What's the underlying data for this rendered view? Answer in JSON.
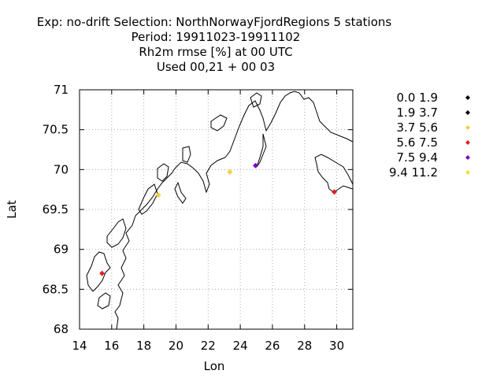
{
  "chart_data": {
    "type": "scatter",
    "title_lines": [
      "Exp: no-drift   Selection: NorthNorwayFjordRegions       5 stations",
      "Period: 19911023-19911102",
      "Rh2m rmse [%] at  00 UTC",
      "Used  00,21  + 00 03"
    ],
    "xlabel": "Lon",
    "ylabel": "Lat",
    "xlim": [
      14,
      31
    ],
    "ylim": [
      68,
      71
    ],
    "xticks": [
      14,
      16,
      18,
      20,
      22,
      24,
      26,
      28,
      30
    ],
    "yticks": [
      68,
      68.5,
      69,
      69.5,
      70,
      70.5,
      71
    ],
    "xtick_labels": [
      "14",
      "16",
      "18",
      "20",
      "22",
      "24",
      "26",
      "28",
      "30"
    ],
    "ytick_labels": [
      "68",
      "68.5",
      "69",
      "69.5",
      "70",
      "70.5",
      "71"
    ],
    "grid": true,
    "legend_position": "right",
    "legend": [
      {
        "label": "0.0 1.9",
        "color": "#000000"
      },
      {
        "label": "1.9 3.7",
        "color": "#000000"
      },
      {
        "label": "3.7 5.6",
        "color": "#f0d040"
      },
      {
        "label": "5.6 7.5",
        "color": "#e02020"
      },
      {
        "label": "7.5 9.4",
        "color": "#8000c0"
      },
      {
        "label": "9.4 11.2",
        "color": "#f0e040"
      }
    ],
    "stations": [
      {
        "lon": 15.4,
        "lat": 68.7,
        "color": "#e02020"
      },
      {
        "lon": 18.9,
        "lat": 69.68,
        "color": "#f0d040"
      },
      {
        "lon": 23.35,
        "lat": 69.97,
        "color": "#f0d040"
      },
      {
        "lon": 24.95,
        "lat": 70.05,
        "color": "#8000c0"
      },
      {
        "lon": 29.85,
        "lat": 69.72,
        "color": "#e02020"
      }
    ]
  }
}
